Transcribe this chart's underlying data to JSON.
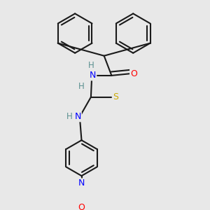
{
  "background_color": "#e8e8e8",
  "bond_color": "#1a1a1a",
  "bond_width": 1.5,
  "atom_colors": {
    "N": "#0000ff",
    "O": "#ff0000",
    "S": "#ccaa00",
    "H": "#5a9090",
    "C": "#1a1a1a"
  },
  "figsize": [
    3.0,
    3.0
  ],
  "dpi": 100
}
